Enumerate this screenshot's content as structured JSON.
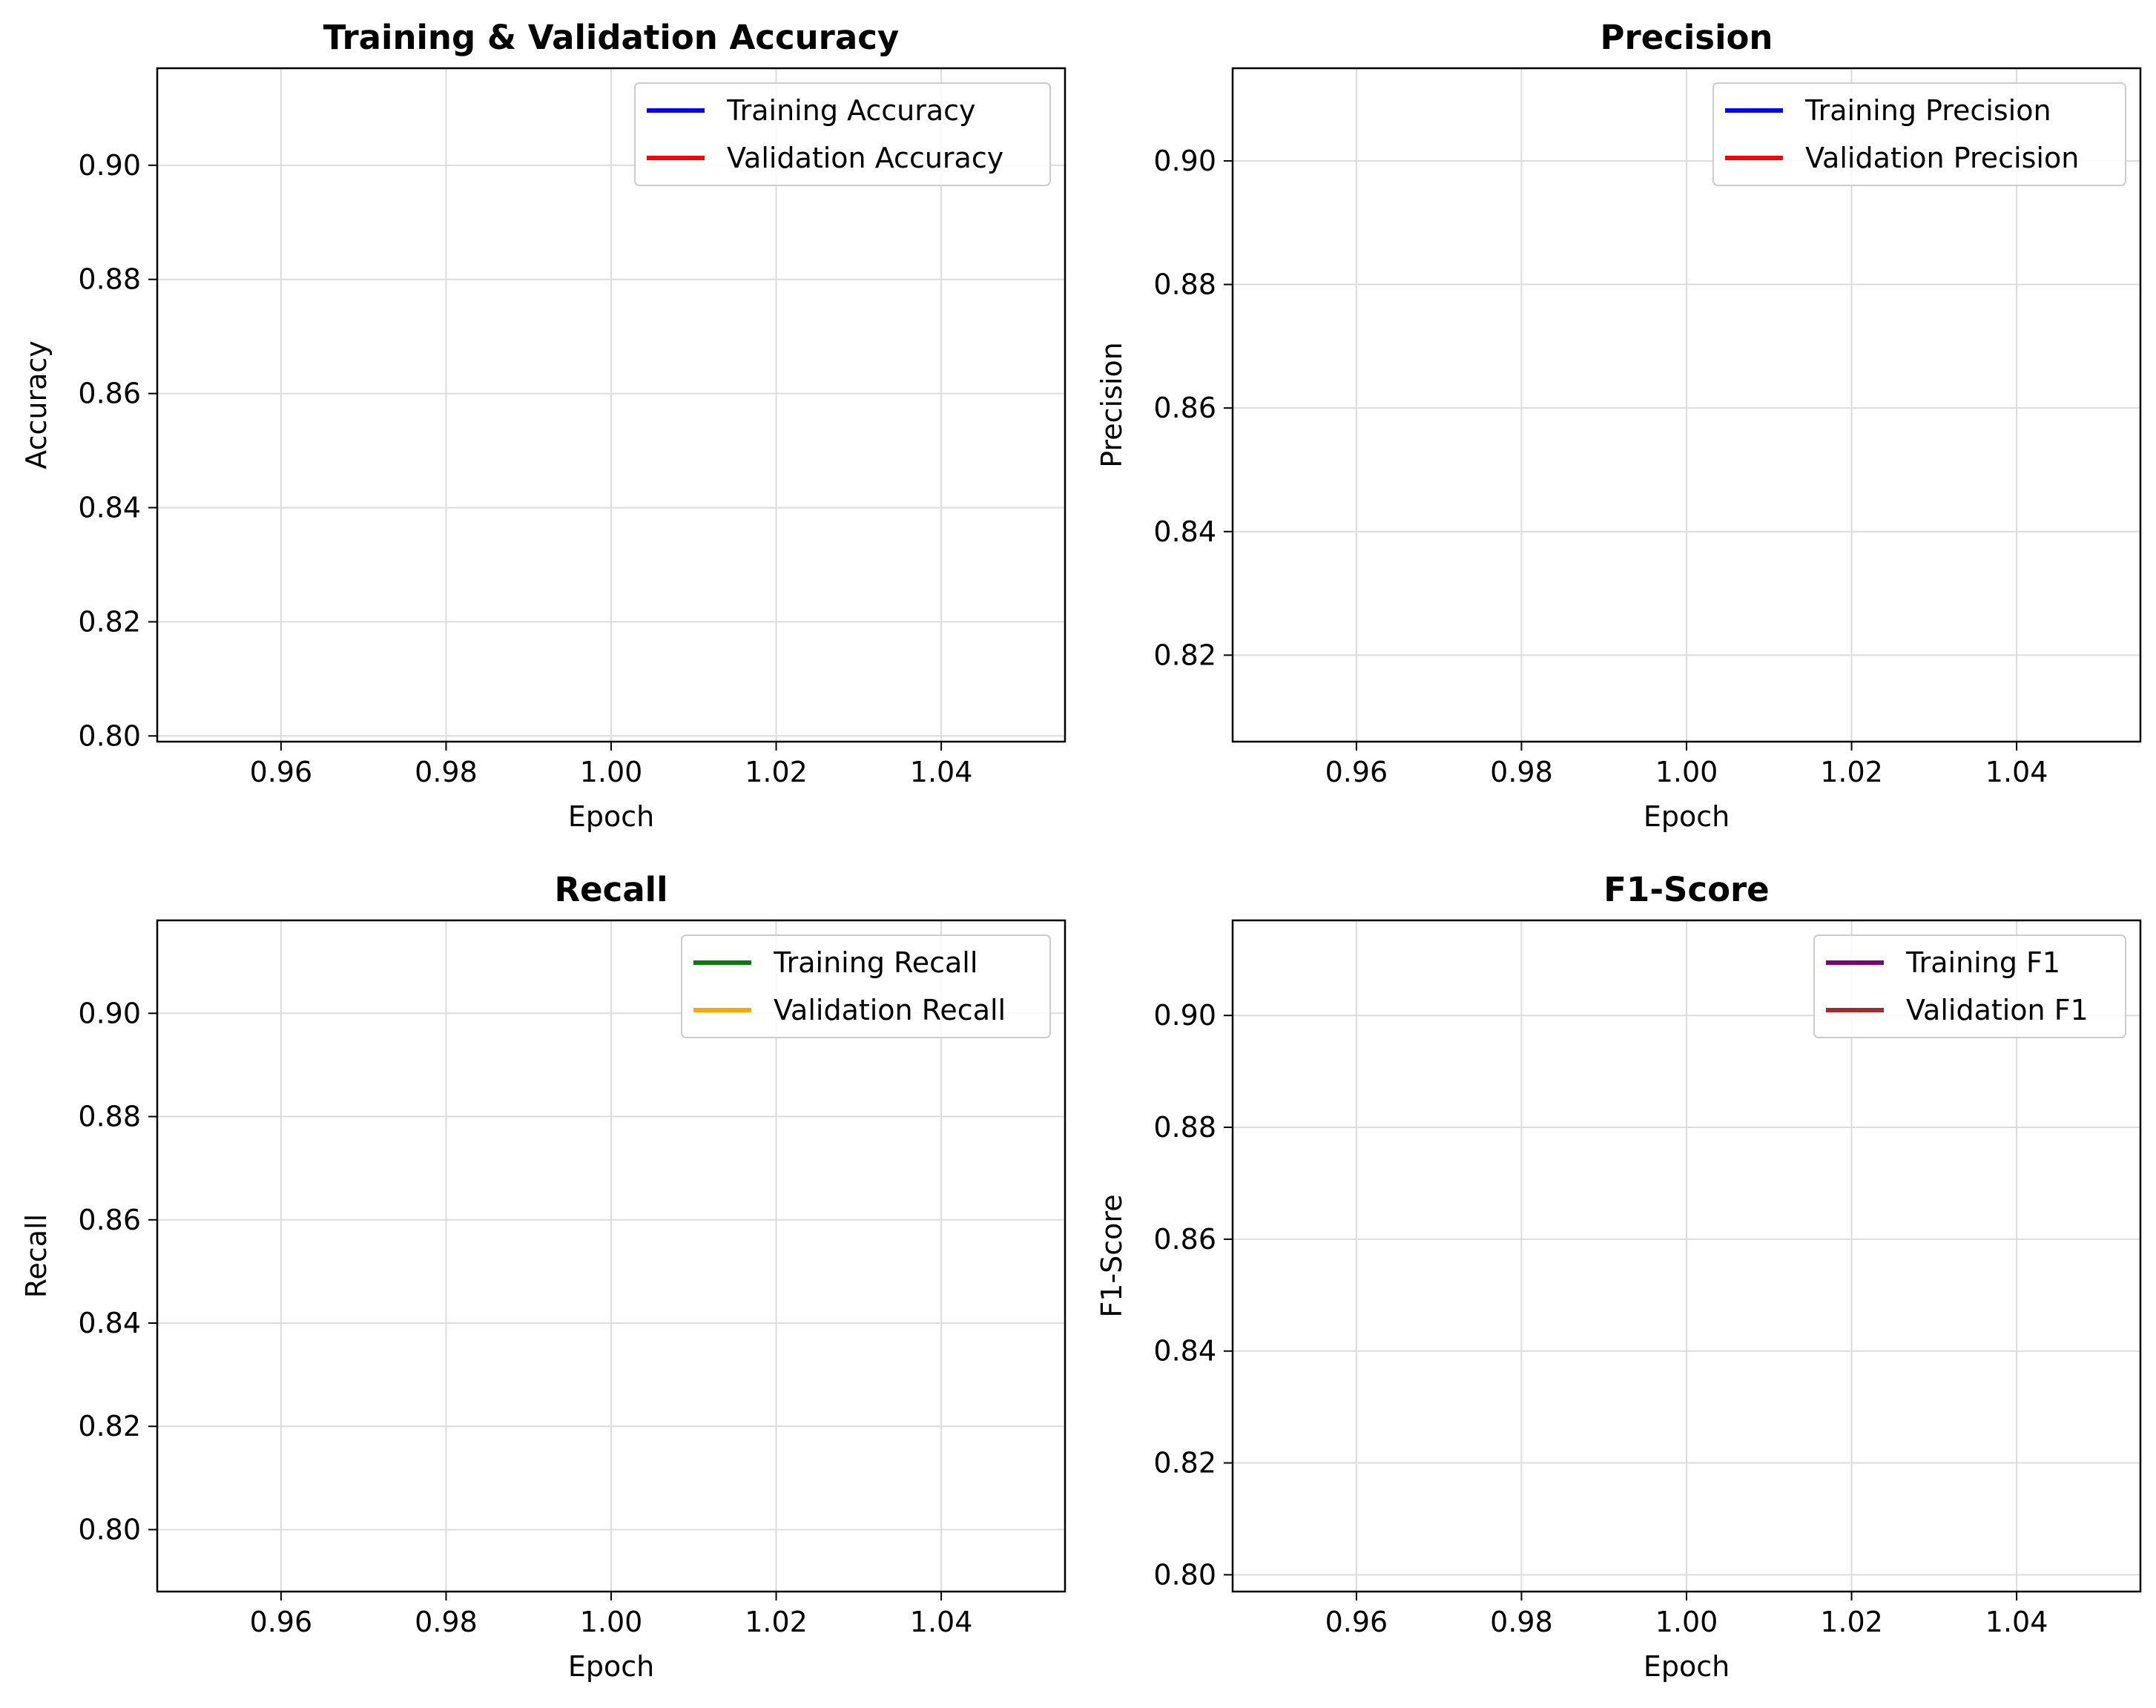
{
  "chart_data": [
    {
      "type": "line",
      "title": "Training & Validation Accuracy",
      "xlabel": "Epoch",
      "ylabel": "Accuracy",
      "xlim": [
        0.945,
        1.055
      ],
      "ylim": [
        0.799,
        0.917
      ],
      "xticks": [
        0.96,
        0.98,
        1.0,
        1.02,
        1.04
      ],
      "xtick_labels": [
        "0.96",
        "0.98",
        "1.00",
        "1.02",
        "1.04"
      ],
      "yticks": [
        0.8,
        0.82,
        0.84,
        0.86,
        0.88,
        0.9
      ],
      "ytick_labels": [
        "0.80",
        "0.82",
        "0.84",
        "0.86",
        "0.88",
        "0.90"
      ],
      "grid": true,
      "legend_position": "top-right",
      "series": [
        {
          "name": "Training Accuracy",
          "color": "#0000ff",
          "x": [],
          "y": []
        },
        {
          "name": "Validation Accuracy",
          "color": "#ff0000",
          "x": [],
          "y": []
        }
      ]
    },
    {
      "type": "line",
      "title": "Precision",
      "xlabel": "Epoch",
      "ylabel": "Precision",
      "xlim": [
        0.945,
        1.055
      ],
      "ylim": [
        0.806,
        0.915
      ],
      "xticks": [
        0.96,
        0.98,
        1.0,
        1.02,
        1.04
      ],
      "xtick_labels": [
        "0.96",
        "0.98",
        "1.00",
        "1.02",
        "1.04"
      ],
      "yticks": [
        0.82,
        0.84,
        0.86,
        0.88,
        0.9
      ],
      "ytick_labels": [
        "0.82",
        "0.84",
        "0.86",
        "0.88",
        "0.90"
      ],
      "grid": true,
      "legend_position": "top-right",
      "series": [
        {
          "name": "Training Precision",
          "color": "#0000ff",
          "x": [],
          "y": []
        },
        {
          "name": "Validation Precision",
          "color": "#ff0000",
          "x": [],
          "y": []
        }
      ]
    },
    {
      "type": "line",
      "title": "Recall",
      "xlabel": "Epoch",
      "ylabel": "Recall",
      "xlim": [
        0.945,
        1.055
      ],
      "ylim": [
        0.788,
        0.918
      ],
      "xticks": [
        0.96,
        0.98,
        1.0,
        1.02,
        1.04
      ],
      "xtick_labels": [
        "0.96",
        "0.98",
        "1.00",
        "1.02",
        "1.04"
      ],
      "yticks": [
        0.8,
        0.82,
        0.84,
        0.86,
        0.88,
        0.9
      ],
      "ytick_labels": [
        "0.80",
        "0.82",
        "0.84",
        "0.86",
        "0.88",
        "0.90"
      ],
      "grid": true,
      "legend_position": "top-right",
      "series": [
        {
          "name": "Training Recall",
          "color": "#008000",
          "x": [],
          "y": []
        },
        {
          "name": "Validation Recall",
          "color": "#ffa500",
          "x": [],
          "y": []
        }
      ]
    },
    {
      "type": "line",
      "title": "F1-Score",
      "xlabel": "Epoch",
      "ylabel": "F1-Score",
      "xlim": [
        0.945,
        1.055
      ],
      "ylim": [
        0.797,
        0.917
      ],
      "xticks": [
        0.96,
        0.98,
        1.0,
        1.02,
        1.04
      ],
      "xtick_labels": [
        "0.96",
        "0.98",
        "1.00",
        "1.02",
        "1.04"
      ],
      "yticks": [
        0.8,
        0.82,
        0.84,
        0.86,
        0.88,
        0.9
      ],
      "ytick_labels": [
        "0.80",
        "0.82",
        "0.84",
        "0.86",
        "0.88",
        "0.90"
      ],
      "grid": true,
      "legend_position": "top-right",
      "series": [
        {
          "name": "Training F1",
          "color": "#800080",
          "x": [],
          "y": []
        },
        {
          "name": "Validation F1",
          "color": "#a52a2a",
          "x": [],
          "y": []
        }
      ]
    }
  ]
}
